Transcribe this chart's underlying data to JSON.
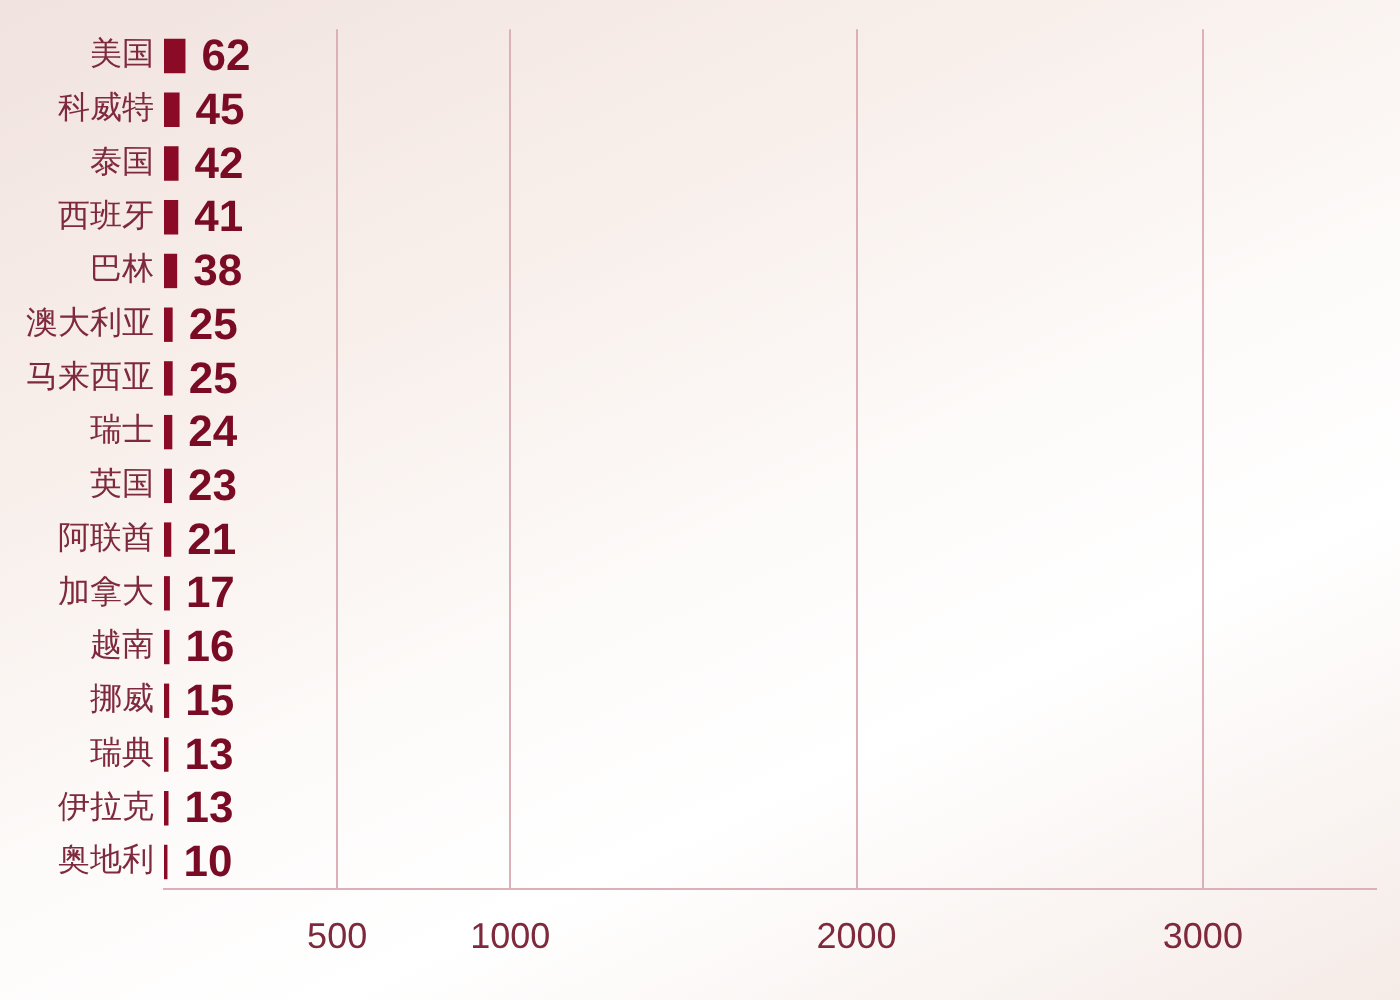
{
  "chart_data": {
    "type": "bar",
    "orientation": "horizontal",
    "categories": [
      "美国",
      "科威特",
      "泰国",
      "西班牙",
      "巴林",
      "澳大利亚",
      "马来西亚",
      "瑞士",
      "英国",
      "阿联酋",
      "加拿大",
      "越南",
      "挪威",
      "瑞典",
      "伊拉克",
      "奥地利"
    ],
    "values": [
      62,
      45,
      42,
      41,
      38,
      25,
      25,
      24,
      23,
      21,
      17,
      16,
      15,
      13,
      13,
      10
    ],
    "color": "#8b0a26",
    "xlim": [
      0,
      3500
    ],
    "xticks": [
      500,
      1000,
      2000,
      3000
    ],
    "grid": "x",
    "data_labels": true
  }
}
